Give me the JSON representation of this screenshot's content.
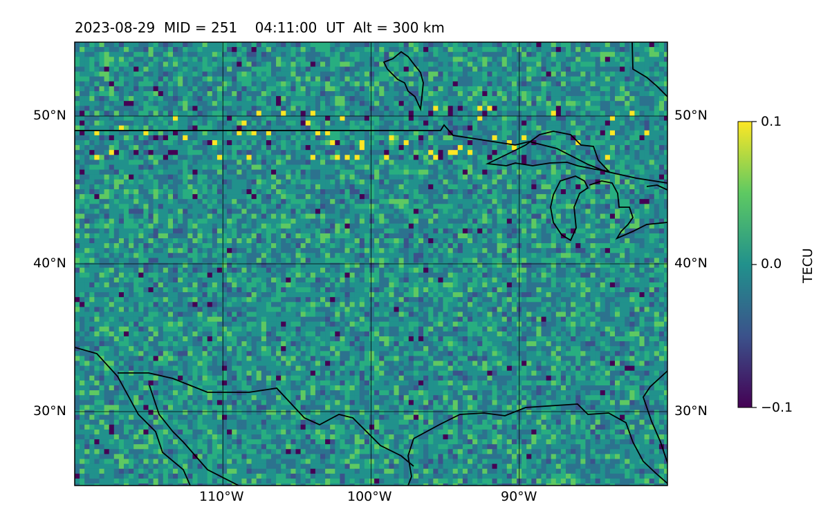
{
  "header": {
    "title": "2023-08-29  MID = 251    04:11:00  UT  Alt = 300 km"
  },
  "map": {
    "projection": "equirectangular",
    "lon_range": [
      -120,
      -80
    ],
    "lat_range": [
      25,
      55
    ],
    "lat_ticks": [
      {
        "value": 50,
        "label": "50°N"
      },
      {
        "value": 40,
        "label": "40°N"
      },
      {
        "value": 30,
        "label": "30°N"
      }
    ],
    "lon_ticks": [
      {
        "value": -110,
        "label": "110°W"
      },
      {
        "value": -100,
        "label": "100°W"
      },
      {
        "value": -90,
        "label": "90°W"
      }
    ],
    "gridlines": true,
    "field": "TEC perturbation",
    "colormap": "viridis"
  },
  "colorbar": {
    "label": "TECU",
    "min": -0.1,
    "max": 0.1,
    "ticks": [
      {
        "value": 0.1,
        "label": "0.1"
      },
      {
        "value": 0.0,
        "label": "0.0"
      },
      {
        "value": -0.1,
        "label": "−0.1"
      }
    ],
    "colors": [
      "#440154",
      "#3b528b",
      "#21918c",
      "#5ec962",
      "#fde725"
    ]
  }
}
